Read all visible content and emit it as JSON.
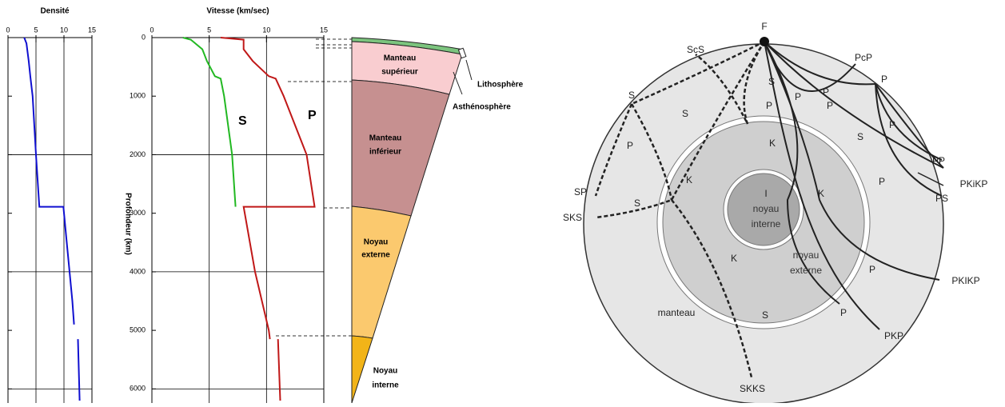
{
  "chart_data": [
    {
      "type": "line",
      "title": "Densité",
      "xlim": [
        0,
        15
      ],
      "xticks": [
        0,
        5,
        10,
        15
      ],
      "ylim": [
        0,
        6200
      ],
      "yticks": [
        0,
        1000,
        2000,
        3000,
        4000,
        5000,
        6000
      ],
      "show_ytick_labels": false,
      "ygrid": [
        2000,
        4000,
        6000
      ],
      "series": [
        {
          "name": "Densité",
          "color": "#1010d0",
          "depth": [
            0,
            100,
            400,
            670,
            1000,
            2000,
            2890,
            2890,
            3500,
            4500,
            4900,
            null,
            5150,
            6200
          ],
          "values": [
            2.9,
            3.3,
            3.7,
            4.0,
            4.4,
            5.0,
            5.6,
            9.9,
            10.5,
            11.5,
            11.8,
            null,
            12.5,
            12.8
          ]
        }
      ]
    },
    {
      "type": "line",
      "title": "Vitesse (km/sec)",
      "ylabel": "Profondeur (km)",
      "xlim": [
        0,
        15
      ],
      "xticks": [
        0,
        5,
        10,
        15
      ],
      "ylim": [
        0,
        6200
      ],
      "yticks": [
        0,
        1000,
        2000,
        3000,
        4000,
        5000,
        6000
      ],
      "show_ytick_labels": true,
      "ygrid": [
        2000,
        4000,
        6000
      ],
      "series": [
        {
          "name": "S",
          "color": "#22b822",
          "depth": [
            0,
            35,
            200,
            400,
            660,
            700,
            1000,
            2000,
            2890
          ],
          "values": [
            2.7,
            3.4,
            4.4,
            4.8,
            5.5,
            6.0,
            6.3,
            7.0,
            7.3
          ]
        },
        {
          "name": "P",
          "color": "#c01818",
          "depth": [
            0,
            35,
            200,
            400,
            660,
            700,
            1000,
            2000,
            2890,
            2890,
            4000,
            5000,
            5150,
            null,
            5150,
            6200
          ],
          "values": [
            6.0,
            8.0,
            8.0,
            8.8,
            10.2,
            10.8,
            11.5,
            13.5,
            14.2,
            8.0,
            9.0,
            10.2,
            10.3,
            null,
            11.0,
            11.2
          ]
        }
      ]
    }
  ],
  "layers": {
    "upper_mantle": [
      "Manteau",
      "supérieur"
    ],
    "lithosphere": "Lithosphère",
    "asthenosphere": "Asthénosphère",
    "lower_mantle": [
      "Manteau",
      "inférieur"
    ],
    "outer_core": [
      "Noyau",
      "externe"
    ],
    "inner_core": [
      "Noyau",
      "interne"
    ]
  },
  "diagram": {
    "labels": [
      "F",
      "ScS",
      "PcP",
      "P",
      "S",
      "S",
      "P",
      "P",
      "S",
      "P",
      "P",
      "P",
      "P",
      "K",
      "S",
      "PP",
      "K",
      "PKiKP",
      "P",
      "PS",
      "SP",
      "SKS",
      "S",
      "K",
      "I",
      "K",
      "P",
      "PKIKP",
      "manteau",
      "S",
      "P",
      "PKP",
      "SKKS"
    ],
    "inner_core": [
      "noyau",
      "interne"
    ],
    "outer_core": [
      "noyau",
      "externe"
    ]
  }
}
